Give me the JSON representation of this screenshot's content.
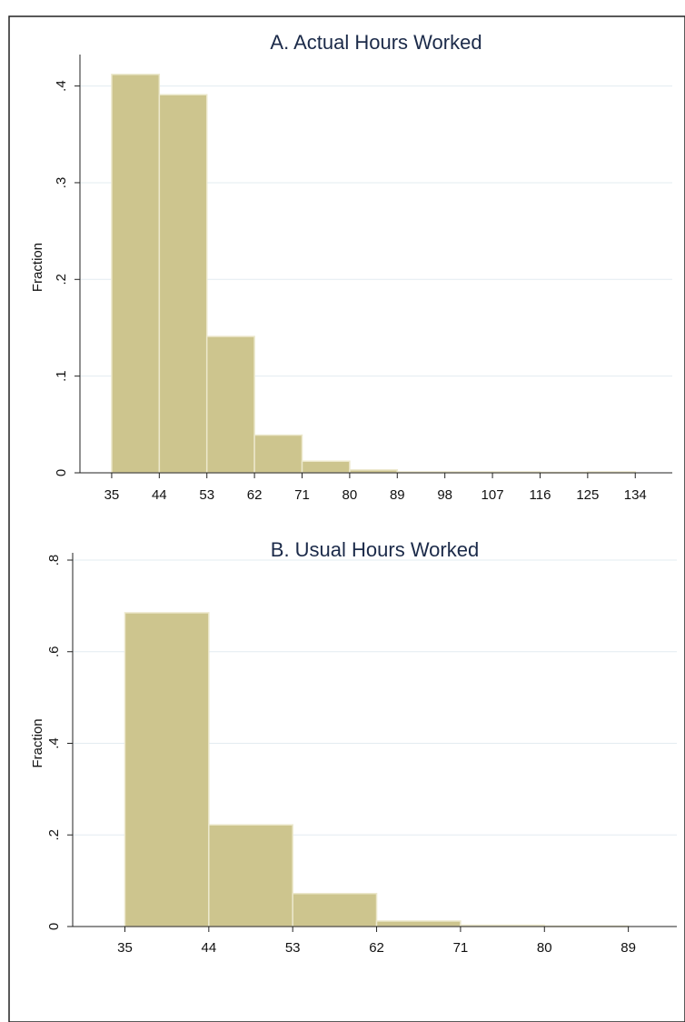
{
  "chart_data": [
    {
      "type": "histogram",
      "title": "A. Actual Hours Worked",
      "ylabel": "Fraction",
      "bins": [
        35,
        44,
        53,
        62,
        71,
        80,
        89,
        98,
        107,
        116,
        125,
        134
      ],
      "values": [
        0.412,
        0.391,
        0.141,
        0.039,
        0.012,
        0.003,
        0.001,
        0.001,
        0.001,
        0.0005,
        0.001
      ],
      "color": "#cdc58e",
      "xlim": [
        29,
        141
      ],
      "xticks": [
        35,
        44,
        53,
        62,
        71,
        80,
        89,
        98,
        107,
        116,
        125,
        134
      ],
      "ylim": [
        0,
        0.425
      ],
      "yticks": [
        {
          "value": 0,
          "label": "0"
        },
        {
          "value": 0.1,
          "label": ".1"
        },
        {
          "value": 0.2,
          "label": ".2"
        },
        {
          "value": 0.3,
          "label": ".3"
        },
        {
          "value": 0.4,
          "label": ".4"
        }
      ],
      "grid": true
    },
    {
      "type": "histogram",
      "title": "B. Usual Hours Worked",
      "ylabel": "Fraction",
      "bins": [
        35,
        44,
        53,
        62,
        71,
        80,
        89
      ],
      "values": [
        0.685,
        0.222,
        0.072,
        0.012,
        0.003,
        0.001
      ],
      "color": "#cdc58e",
      "xlim": [
        29.4,
        94.2
      ],
      "xticks": [
        35,
        44,
        53,
        62,
        71,
        80,
        89
      ],
      "ylim": [
        0,
        0.8
      ],
      "yticks": [
        {
          "value": 0,
          "label": "0"
        },
        {
          "value": 0.2,
          "label": ".2"
        },
        {
          "value": 0.4,
          "label": ".4"
        },
        {
          "value": 0.6,
          "label": ".6"
        },
        {
          "value": 0.8,
          "label": ".8"
        }
      ],
      "grid": true
    }
  ]
}
